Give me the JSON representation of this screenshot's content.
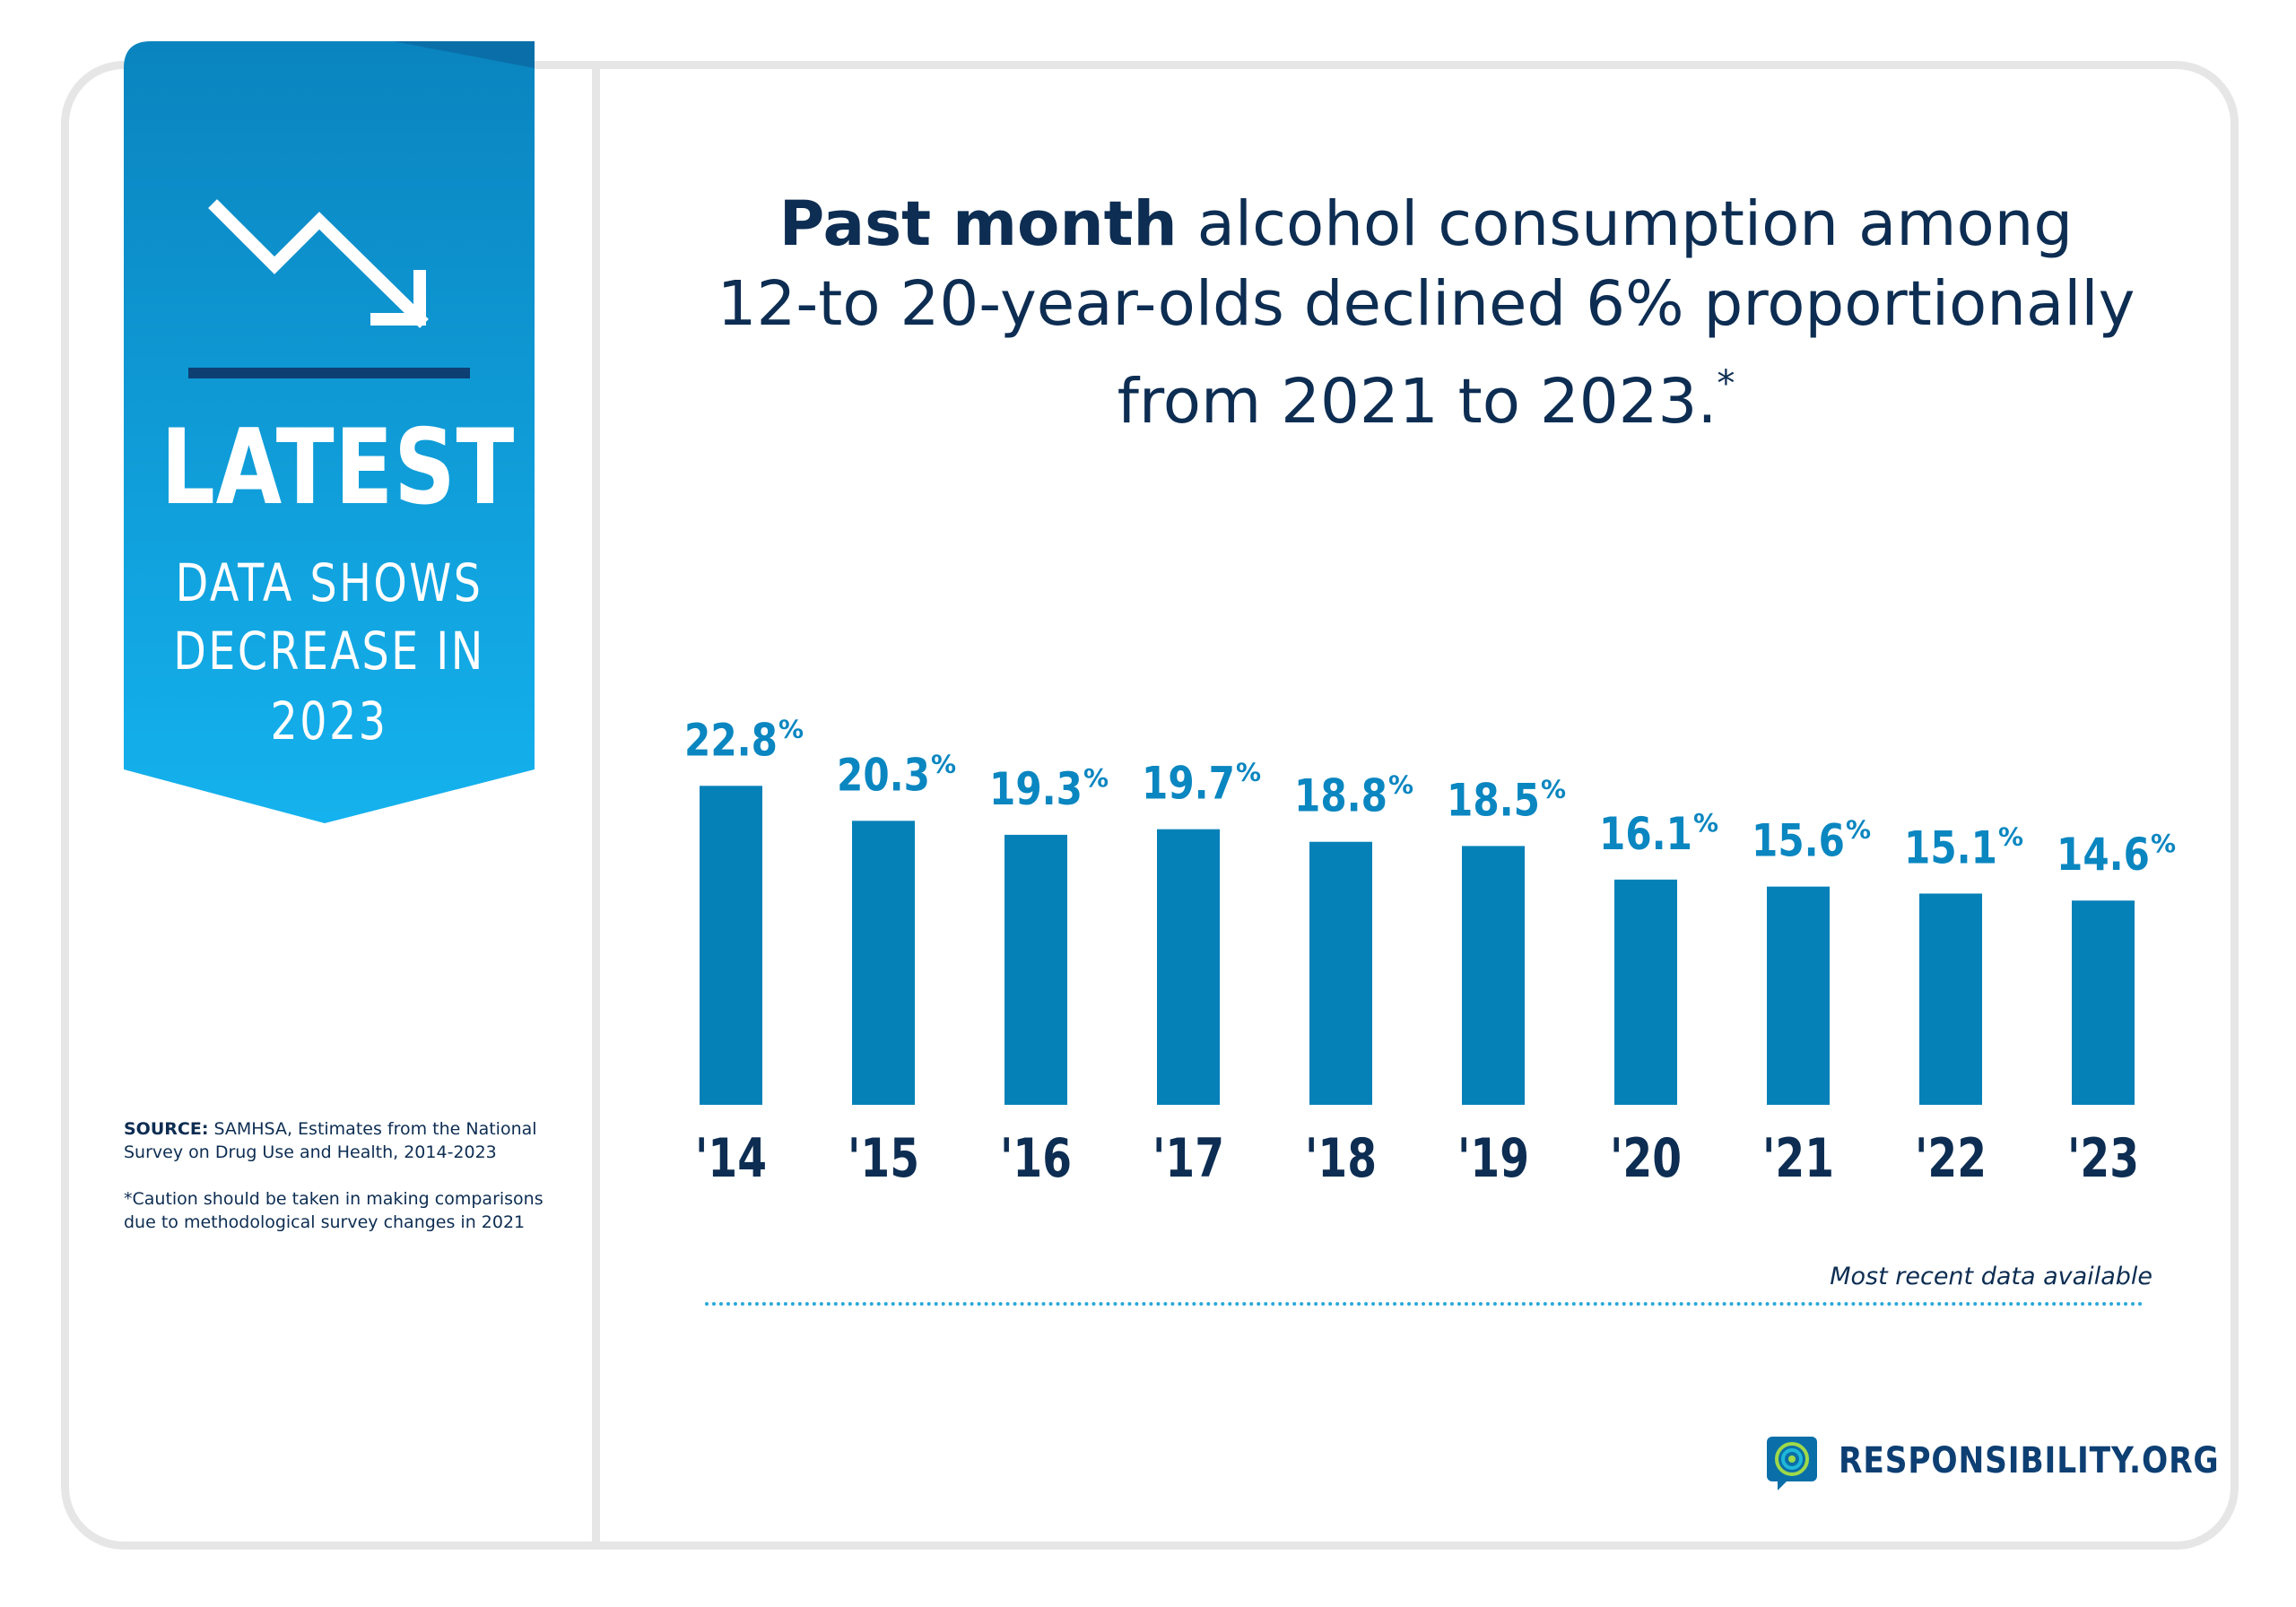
{
  "banner": {
    "headline": "LATEST",
    "line1": "DATA SHOWS",
    "line2": "DECREASE IN",
    "line3": "2023",
    "icon": "trend-down-arrow-icon",
    "gradient_top": "#0a84bf",
    "gradient_bottom": "#14b2ee"
  },
  "title": {
    "bold": "Past month",
    "rest1": " alcohol consumption among",
    "line2": "12-to 20-year-olds declined 6% proportionally",
    "line3": "from 2021 to 2023.",
    "footnote_mark": "*"
  },
  "source": {
    "label": "SOURCE:",
    "text": " SAMHSA, Estimates from the National Survey on Drug Use and Health, 2014-2023"
  },
  "caution": "*Caution should be taken in making comparisons due to methodological survey changes in 2021",
  "note": "Most recent data available",
  "logo": {
    "text": "RESPONSIBILITY.ORG",
    "icon": "target-speech-bubble-icon"
  },
  "colors": {
    "bar": "#0681b8",
    "value_label": "#0a86c0",
    "year_label": "#0d2d52"
  },
  "chart_data": {
    "type": "bar",
    "categories": [
      "'14",
      "'15",
      "'16",
      "'17",
      "'18",
      "'19",
      "'20",
      "'21",
      "'22",
      "'23"
    ],
    "values": [
      22.8,
      20.3,
      19.3,
      19.7,
      18.8,
      18.5,
      16.1,
      15.6,
      15.1,
      14.6
    ],
    "value_labels": [
      "22.8",
      "20.3",
      "19.3",
      "19.7",
      "18.8",
      "18.5",
      "16.1",
      "15.6",
      "15.1",
      "14.6"
    ],
    "unit": "%",
    "title": "",
    "xlabel": "",
    "ylabel": "",
    "grid": false
  }
}
